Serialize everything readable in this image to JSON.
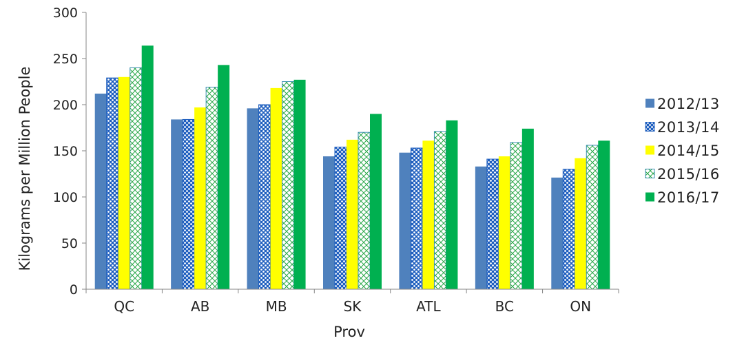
{
  "chart_data": {
    "type": "bar",
    "title": "",
    "xlabel": "Prov",
    "ylabel": "Kilograms per Million People",
    "ylim": [
      0,
      300
    ],
    "yticks": [
      0,
      50,
      100,
      150,
      200,
      250,
      300
    ],
    "grid": false,
    "legend_position": "right",
    "categories": [
      "QC",
      "AB",
      "MB",
      "SK",
      "ATL",
      "BC",
      "ON"
    ],
    "series": [
      {
        "name": "2012/13",
        "color": "#4f81bd",
        "pattern": "solid",
        "values": [
          212,
          184,
          196,
          144,
          148,
          133,
          121
        ]
      },
      {
        "name": "2013/14",
        "color": "#2e6bc6",
        "pattern": "dots",
        "values": [
          229,
          184,
          200,
          154,
          153,
          141,
          130
        ]
      },
      {
        "name": "2014/15",
        "color": "#ffff00",
        "pattern": "solid",
        "values": [
          230,
          197,
          218,
          162,
          161,
          144,
          142
        ]
      },
      {
        "name": "2015/16",
        "color": "#4bacc6",
        "pattern": "diagonal-cross",
        "values": [
          240,
          219,
          225,
          170,
          171,
          159,
          156
        ]
      },
      {
        "name": "2016/17",
        "color": "#00b050",
        "pattern": "solid",
        "values": [
          264,
          243,
          227,
          190,
          183,
          174,
          161
        ]
      }
    ]
  }
}
